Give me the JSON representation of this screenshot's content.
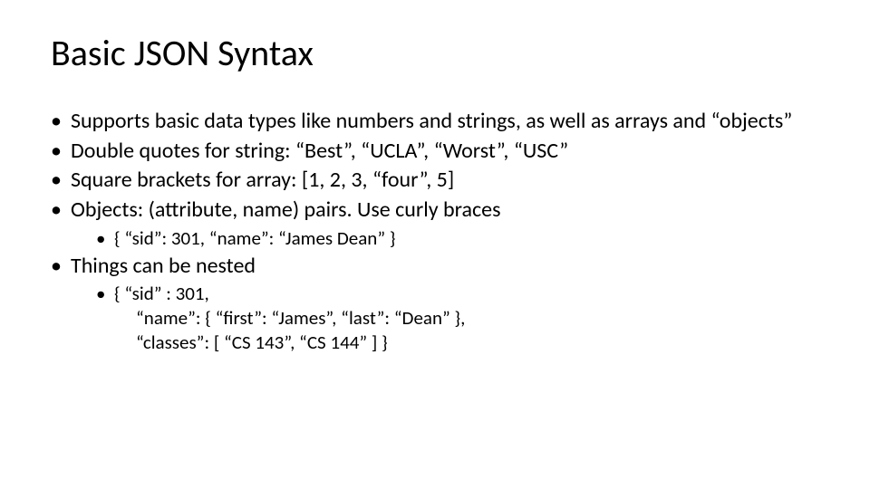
{
  "slide": {
    "title": "Basic JSON Syntax",
    "title_fontsize": 40,
    "body_fontsize_level1": 24,
    "body_fontsize_level2": 21,
    "text_color": "#000000",
    "background_color": "#ffffff",
    "font_family": "Calibri",
    "bullets": [
      {
        "text": "Supports basic data types like numbers and strings, as well as arrays and “objects”"
      },
      {
        "text": "Double quotes for string: “Best”, “UCLA”, “Worst”, “USC”"
      },
      {
        "text": "Square brackets for array: [1, 2, 3, “four”, 5]"
      },
      {
        "text": "Objects: (attribute, name) pairs. Use curly braces",
        "sub": [
          {
            "text": "{ “sid”: 301, “name”: “James Dean” }"
          }
        ]
      },
      {
        "text": "Things can be nested",
        "sub": [
          {
            "lines": [
              "{ “sid” : 301,",
              "“name”: { “first”: “James”, “last”: “Dean” },",
              "“classes”: [ “CS 143”, “CS 144” ] }"
            ]
          }
        ]
      }
    ]
  }
}
